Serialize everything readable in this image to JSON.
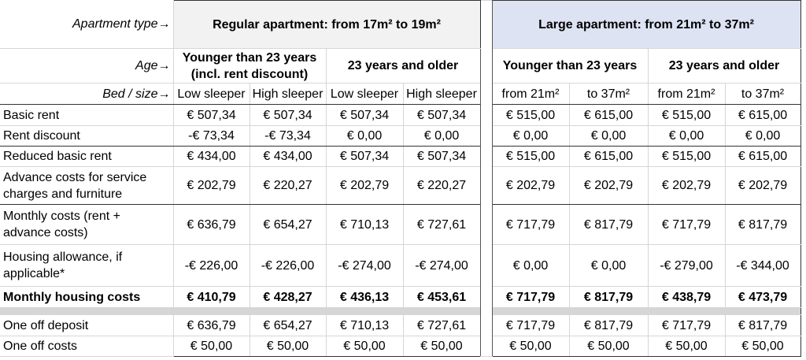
{
  "headers": {
    "apartment_type_label": "Apartment type→",
    "age_label": "Age→",
    "bed_size_label": "Bed / size→",
    "regular_apartment": "Regular apartment: from 17m² to 19m²",
    "large_apartment": "Large apartment: from 21m² to 37m²",
    "regular_age_young": "Younger than 23 years (incl. rent discount)",
    "regular_age_old": "23 years and older",
    "large_age_young": "Younger than 23 years",
    "large_age_old": "23 years and older",
    "sub": [
      "Low sleeper",
      "High sleeper",
      "Low sleeper",
      "High sleeper",
      "from 21m²",
      "to 37m²",
      "from 21m²",
      "to 37m²"
    ]
  },
  "rows": [
    {
      "label": "Basic rent",
      "values": [
        "€ 507,34",
        "€ 507,34",
        "€ 507,34",
        "€ 507,34",
        "€ 515,00",
        "€ 615,00",
        "€ 515,00",
        "€ 615,00"
      ]
    },
    {
      "label": "Rent discount",
      "values": [
        "-€ 73,34",
        "-€ 73,34",
        "€ 0,00",
        "€ 0,00",
        "€ 0,00",
        "€ 0,00",
        "€ 0,00",
        "€ 0,00"
      ]
    },
    {
      "label": "Reduced basic rent",
      "values": [
        "€ 434,00",
        "€ 434,00",
        "€ 507,34",
        "€ 507,34",
        "€ 515,00",
        "€ 615,00",
        "€ 515,00",
        "€ 615,00"
      ]
    },
    {
      "label": "Advance costs for service charges and furniture",
      "values": [
        "€ 202,79",
        "€ 220,27",
        "€ 202,79",
        "€ 220,27",
        "€ 202,79",
        "€ 202,79",
        "€ 202,79",
        "€ 202,79"
      ]
    },
    {
      "label": "Monthly costs (rent + advance costs)",
      "values": [
        "€ 636,79",
        "€ 654,27",
        "€ 710,13",
        "€ 727,61",
        "€ 717,79",
        "€ 817,79",
        "€ 717,79",
        "€ 817,79"
      ]
    },
    {
      "label": "Housing allowance, if applicable*",
      "values": [
        "-€ 226,00",
        "-€ 226,00",
        "-€ 274,00",
        "-€ 274,00",
        "€ 0,00",
        "€ 0,00",
        "-€ 279,00",
        "-€ 344,00"
      ]
    },
    {
      "label": "Monthly housing costs",
      "values": [
        "€ 410,79",
        "€ 428,27",
        "€ 436,13",
        "€ 453,61",
        "€ 717,79",
        "€ 817,79",
        "€ 438,79",
        "€ 473,79"
      ]
    },
    {
      "label": "One off deposit",
      "values": [
        "€ 636,79",
        "€ 654,27",
        "€ 710,13",
        "€ 727,61",
        "€ 717,79",
        "€ 817,79",
        "€ 717,79",
        "€ 817,79"
      ]
    },
    {
      "label": "One off costs",
      "values": [
        "€ 50,00",
        "€ 50,00",
        "€ 50,00",
        "€ 50,00",
        "€ 50,00",
        "€ 50,00",
        "€ 50,00",
        "€ 50,00"
      ]
    }
  ]
}
